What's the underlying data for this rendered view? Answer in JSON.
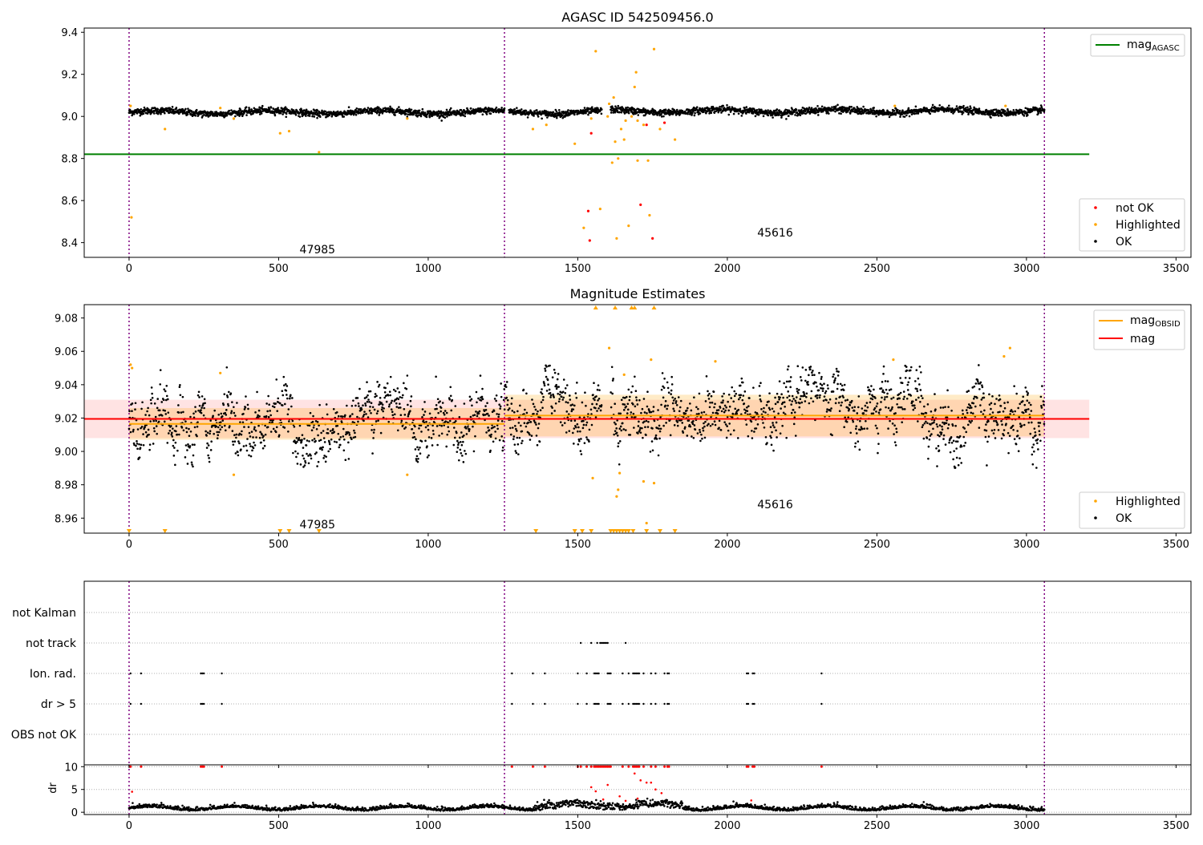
{
  "chart_data": [
    {
      "type": "scatter",
      "title": "AGASC ID 542509456.0",
      "xlim": [
        -150,
        3550
      ],
      "ylim": [
        8.33,
        9.42
      ],
      "xticks": [
        "0",
        "500",
        "1000",
        "1500",
        "2000",
        "2500",
        "3000",
        "3500"
      ],
      "yticks": [
        "8.4",
        "8.6",
        "8.8",
        "9.0",
        "9.2",
        "9.4"
      ],
      "mag_agasc": 8.82,
      "obsid_boundaries": [
        0,
        1255,
        3060
      ],
      "obsid_labels": [
        {
          "text": "47985",
          "x": 570,
          "y": 8.35
        },
        {
          "text": "45616",
          "x": 2100,
          "y": 8.43
        }
      ],
      "legend_line": {
        "label_main": "mag",
        "label_sub": "AGASC",
        "color": "#008000",
        "placement": "upper-right"
      },
      "legend_points": [
        {
          "label": "not OK",
          "color": "#ff0000"
        },
        {
          "label": "Highlighted",
          "color": "#ffa500"
        },
        {
          "label": "OK",
          "color": "#000000"
        }
      ],
      "legend_points_placement": "lower-right",
      "ok_segments": [
        {
          "x0": 0,
          "x1": 1255,
          "level": 9.02
        },
        {
          "x0": 1270,
          "x1": 1580,
          "level": 9.02
        },
        {
          "x0": 1610,
          "x1": 3060,
          "level": 9.025
        }
      ],
      "highlighted_points": [
        [
          5,
          9.05
        ],
        [
          8,
          8.52
        ],
        [
          120,
          8.94
        ],
        [
          305,
          9.04
        ],
        [
          350,
          8.99
        ],
        [
          505,
          8.92
        ],
        [
          535,
          8.93
        ],
        [
          635,
          8.83
        ],
        [
          930,
          8.99
        ],
        [
          1350,
          8.94
        ],
        [
          1395,
          8.96
        ],
        [
          1490,
          8.87
        ],
        [
          1520,
          8.47
        ],
        [
          1545,
          8.99
        ],
        [
          1560,
          9.31
        ],
        [
          1575,
          8.56
        ],
        [
          1600,
          9.0
        ],
        [
          1615,
          8.78
        ],
        [
          1625,
          8.88
        ],
        [
          1630,
          8.42
        ],
        [
          1635,
          8.8
        ],
        [
          1645,
          8.94
        ],
        [
          1655,
          8.89
        ],
        [
          1670,
          8.48
        ],
        [
          1680,
          9.0
        ],
        [
          1690,
          9.14
        ],
        [
          1695,
          9.21
        ],
        [
          1700,
          8.98
        ],
        [
          1720,
          8.96
        ],
        [
          1735,
          8.79
        ],
        [
          1740,
          8.53
        ],
        [
          1755,
          9.32
        ],
        [
          1775,
          8.94
        ],
        [
          1825,
          8.89
        ],
        [
          2560,
          9.05
        ],
        [
          2930,
          9.05
        ],
        [
          1605,
          9.06
        ],
        [
          1620,
          9.09
        ],
        [
          1660,
          8.98
        ],
        [
          1700,
          8.79
        ]
      ],
      "notok_points": [
        [
          1535,
          8.55
        ],
        [
          1540,
          8.41
        ],
        [
          1545,
          8.92
        ],
        [
          1710,
          8.58
        ],
        [
          1730,
          8.96
        ],
        [
          1750,
          8.42
        ],
        [
          1790,
          8.97
        ]
      ]
    },
    {
      "type": "scatter",
      "title": "Magnitude Estimates",
      "xlim": [
        -150,
        3550
      ],
      "ylim": [
        8.951,
        9.088
      ],
      "xticks": [
        "0",
        "500",
        "1000",
        "1500",
        "2000",
        "2500",
        "3000",
        "3500"
      ],
      "yticks": [
        "8.96",
        "8.98",
        "9.00",
        "9.02",
        "9.04",
        "9.06",
        "9.08"
      ],
      "mag": 9.0195,
      "mag_band": [
        9.008,
        9.031
      ],
      "mag_obsid": [
        {
          "x0": 0,
          "x1": 1255,
          "value": 9.0165,
          "band": [
            9.007,
            9.026
          ]
        },
        {
          "x0": 1255,
          "x1": 3060,
          "value": 9.0215,
          "band": [
            9.009,
            9.034
          ]
        }
      ],
      "obsid_boundaries": [
        0,
        1255,
        3060
      ],
      "obsid_labels": [
        {
          "text": "47985",
          "x": 570,
          "y": 8.954
        },
        {
          "text": "45616",
          "x": 2100,
          "y": 8.966
        }
      ],
      "legend_lines": [
        {
          "label_main": "mag",
          "label_sub": "OBSID",
          "color": "#ffa500"
        },
        {
          "label_main": "mag",
          "label_sub": "",
          "color": "#ff0000"
        }
      ],
      "legend_points": [
        {
          "label": "Highlighted",
          "color": "#ffa500"
        },
        {
          "label": "OK",
          "color": "#000000"
        }
      ],
      "highlighted_points": [
        [
          5,
          9.052
        ],
        [
          10,
          9.05
        ],
        [
          305,
          9.047
        ],
        [
          350,
          8.986
        ],
        [
          930,
          8.986
        ],
        [
          1550,
          8.984
        ],
        [
          1605,
          9.062
        ],
        [
          1630,
          8.973
        ],
        [
          1640,
          8.987
        ],
        [
          1635,
          8.977
        ],
        [
          1655,
          9.046
        ],
        [
          1720,
          8.982
        ],
        [
          1745,
          9.055
        ],
        [
          1755,
          8.981
        ],
        [
          1960,
          9.054
        ],
        [
          2555,
          9.055
        ],
        [
          2925,
          9.057
        ],
        [
          2945,
          9.062
        ],
        [
          1730,
          8.957
        ]
      ],
      "overflow_up": [
        1560,
        1625,
        1680,
        1690,
        1755
      ],
      "overflow_down": [
        0,
        120,
        505,
        535,
        635,
        1360,
        1490,
        1515,
        1545,
        1610,
        1620,
        1630,
        1640,
        1650,
        1660,
        1670,
        1685,
        1730,
        1775,
        1825
      ]
    },
    {
      "type": "scatter",
      "title": "",
      "xlim": [
        -150,
        3550
      ],
      "xticks": [
        "0",
        "500",
        "1000",
        "1500",
        "2000",
        "2500",
        "3000",
        "3500"
      ],
      "flag_rows": [
        {
          "label": "not Kalman",
          "x": []
        },
        {
          "label": "not track",
          "x": [
            1510,
            1545,
            1565,
            1575,
            1580,
            1585,
            1590,
            1595,
            1600,
            1660
          ]
        },
        {
          "label": "Ion. rad.",
          "x": [
            5,
            40,
            240,
            245,
            250,
            310,
            1280,
            1350,
            1390,
            1500,
            1530,
            1555,
            1560,
            1565,
            1570,
            1600,
            1605,
            1610,
            1650,
            1670,
            1685,
            1690,
            1695,
            1700,
            1705,
            1720,
            1745,
            1760,
            1790,
            1800,
            1805,
            2065,
            2070,
            2085,
            2090,
            2315
          ]
        },
        {
          "label": "dr > 5",
          "x": [
            5,
            40,
            240,
            245,
            250,
            310,
            1280,
            1350,
            1390,
            1500,
            1530,
            1555,
            1560,
            1565,
            1570,
            1600,
            1605,
            1610,
            1650,
            1670,
            1685,
            1690,
            1695,
            1700,
            1705,
            1720,
            1745,
            1760,
            1790,
            1800,
            1805,
            2065,
            2070,
            2085,
            2090,
            2315
          ]
        },
        {
          "label": "OBS not OK",
          "x": []
        }
      ],
      "obsid_boundaries": [
        0,
        1255,
        3060
      ]
    },
    {
      "type": "scatter",
      "title": "",
      "ylabel": "dr",
      "xlim": [
        -150,
        3550
      ],
      "ylim": [
        -0.5,
        10.4
      ],
      "xticks": [
        "0",
        "500",
        "1000",
        "1500",
        "2000",
        "2500",
        "3000",
        "3500"
      ],
      "yticks": [
        "0",
        "5",
        "10"
      ],
      "obsid_boundaries": [
        0,
        1255,
        3060
      ],
      "clipped_x": [
        5,
        40,
        240,
        245,
        250,
        310,
        1280,
        1350,
        1390,
        1500,
        1510,
        1530,
        1545,
        1555,
        1560,
        1565,
        1570,
        1575,
        1580,
        1585,
        1590,
        1595,
        1600,
        1605,
        1610,
        1650,
        1670,
        1685,
        1690,
        1695,
        1700,
        1705,
        1720,
        1745,
        1760,
        1790,
        1800,
        1805,
        2065,
        2070,
        2085,
        2090,
        2315
      ],
      "mid_red": [
        [
          1545,
          5.5
        ],
        [
          1560,
          4.6
        ],
        [
          1585,
          2.8
        ],
        [
          1600,
          6.0
        ],
        [
          1640,
          3.5
        ],
        [
          1690,
          8.5
        ],
        [
          1710,
          7.0
        ],
        [
          1730,
          6.5
        ],
        [
          1745,
          6.5
        ],
        [
          1760,
          5.0
        ],
        [
          1780,
          4.2
        ],
        [
          1700,
          3.0
        ],
        [
          1660,
          2.5
        ],
        [
          2080,
          2.6
        ],
        [
          10,
          4.5
        ]
      ],
      "baseline": 0.7
    }
  ]
}
